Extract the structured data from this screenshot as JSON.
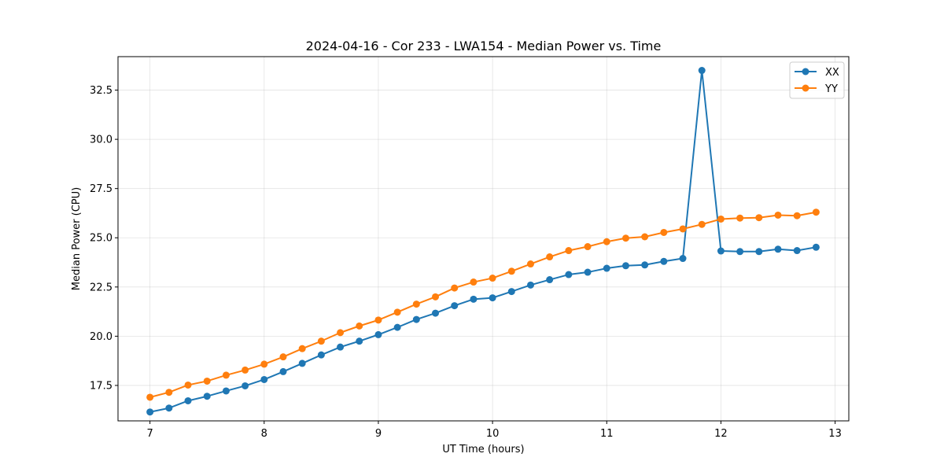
{
  "chart_data": {
    "type": "line",
    "title": "2024-04-16 - Cor 233 - LWA154 - Median Power vs. Time",
    "xlabel": "UT Time (hours)",
    "ylabel": "Median Power (CPU)",
    "xlim": [
      6.72,
      13.12
    ],
    "ylim": [
      15.7,
      34.2
    ],
    "xticks": [
      7,
      8,
      9,
      10,
      11,
      12,
      13
    ],
    "xtick_labels": [
      "7",
      "8",
      "9",
      "10",
      "11",
      "12",
      "13"
    ],
    "yticks": [
      17.5,
      20.0,
      22.5,
      25.0,
      27.5,
      30.0,
      32.5
    ],
    "ytick_labels": [
      "17.5",
      "20.0",
      "22.5",
      "25.0",
      "27.5",
      "30.0",
      "32.5"
    ],
    "grid": true,
    "legend_position": "top-right",
    "x": [
      7.0,
      7.1667,
      7.3333,
      7.5,
      7.6667,
      7.8333,
      8.0,
      8.1667,
      8.3333,
      8.5,
      8.6667,
      8.8333,
      9.0,
      9.1667,
      9.3333,
      9.5,
      9.6667,
      9.8333,
      10.0,
      10.1667,
      10.3333,
      10.5,
      10.6667,
      10.8333,
      11.0,
      11.1667,
      11.3333,
      11.5,
      11.6667,
      11.8333,
      12.0,
      12.1667,
      12.3333,
      12.5,
      12.6667,
      12.8333
    ],
    "series": [
      {
        "name": "XX",
        "color": "#1f77b4",
        "values": [
          16.15,
          16.35,
          16.72,
          16.95,
          17.22,
          17.48,
          17.8,
          18.2,
          18.62,
          19.05,
          19.45,
          19.75,
          20.08,
          20.45,
          20.85,
          21.17,
          21.55,
          21.88,
          21.95,
          22.27,
          22.6,
          22.87,
          23.13,
          23.25,
          23.45,
          23.58,
          23.62,
          23.8,
          23.95,
          33.5,
          24.33,
          24.3,
          24.3,
          24.42,
          24.35,
          24.52
        ]
      },
      {
        "name": "YY",
        "color": "#ff7f0e",
        "values": [
          16.9,
          17.15,
          17.52,
          17.72,
          18.02,
          18.28,
          18.58,
          18.95,
          19.37,
          19.75,
          20.18,
          20.52,
          20.82,
          21.22,
          21.63,
          22.0,
          22.45,
          22.75,
          22.95,
          23.3,
          23.67,
          24.03,
          24.35,
          24.55,
          24.8,
          24.98,
          25.05,
          25.27,
          25.45,
          25.68,
          25.95,
          26.0,
          26.02,
          26.15,
          26.12,
          26.3
        ]
      }
    ]
  }
}
